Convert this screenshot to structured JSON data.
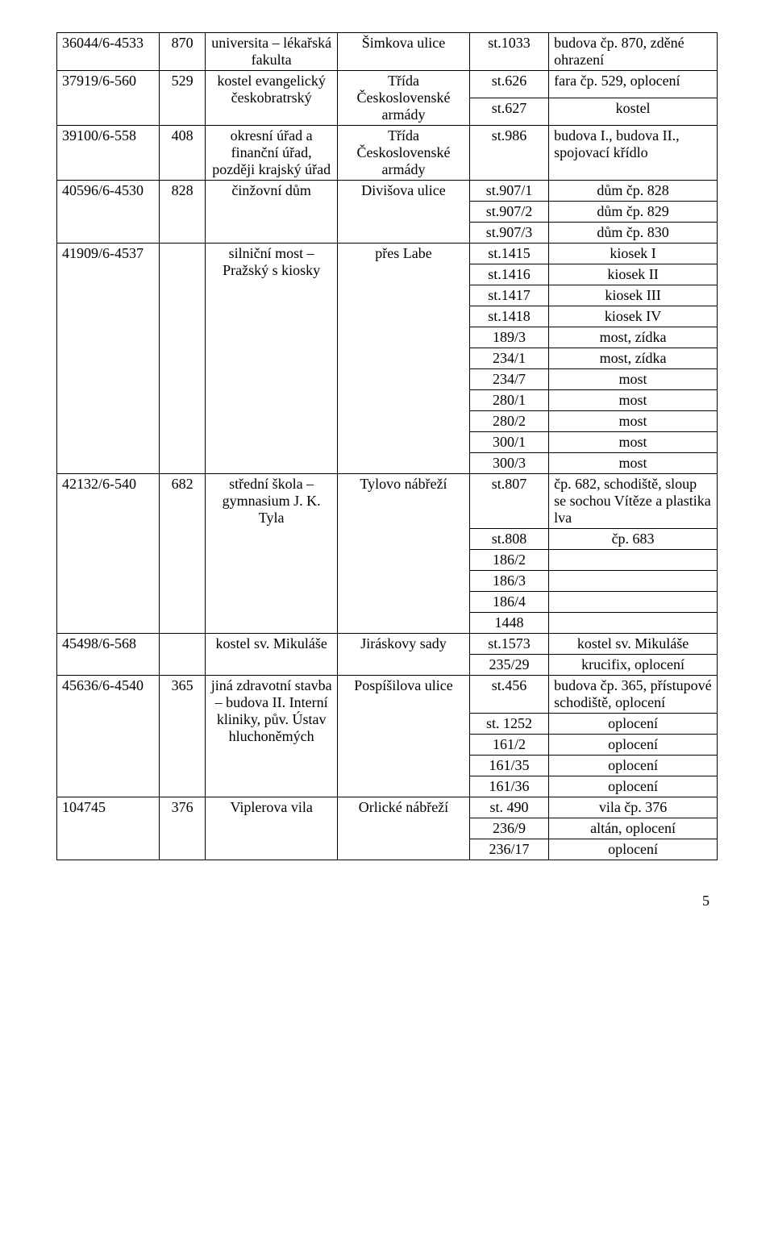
{
  "page_number": "5",
  "rows": [
    {
      "c1": "36044/6-4533",
      "c2": "870",
      "c3": "universita – lékařská fakulta",
      "c4": "Šimkova ulice",
      "c5": "st.1033",
      "c6": "budova čp. 870, zděné ohrazení",
      "rs": {
        "c1": 1,
        "c2": 1,
        "c3": 1,
        "c4": 1,
        "c5": 1,
        "c6": 1
      }
    },
    {
      "c1": "37919/6-560",
      "c2": "529",
      "c3": "kostel evangelický českobratrský",
      "c4": "Třída Československé armády",
      "c5": "st.626",
      "c6": "fara čp. 529, oplocení",
      "rs": {
        "c1": 2,
        "c2": 2,
        "c3": 2,
        "c4": 2,
        "c5": 1,
        "c6": 1
      }
    },
    {
      "c5": "st.627",
      "c6": "kostel"
    },
    {
      "c1": "39100/6-558",
      "c2": "408",
      "c3": "okresní úřad a finanční úřad, později krajský úřad",
      "c4": "Třída Československé armády",
      "c5": "st.986",
      "c6": "budova I., budova II., spojovací křídlo",
      "rs": {
        "c1": 1,
        "c2": 1,
        "c3": 1,
        "c4": 1,
        "c5": 1,
        "c6": 1
      }
    },
    {
      "c1": "40596/6-4530",
      "c2": "828",
      "c3": "činžovní dům",
      "c4": "Divišova ulice",
      "c5": "st.907/1",
      "c6": "dům čp. 828",
      "rs": {
        "c1": 3,
        "c2": 3,
        "c3": 3,
        "c4": 3,
        "c5": 1,
        "c6": 1
      }
    },
    {
      "c5": "st.907/2",
      "c6": "dům čp. 829"
    },
    {
      "c5": "st.907/3",
      "c6": "dům čp. 830"
    },
    {
      "c1": "41909/6-4537",
      "c2": "",
      "c3": "silniční most – Pražský s kiosky",
      "c4": "přes Labe",
      "c5": "st.1415",
      "c6": "kiosek I",
      "rs": {
        "c1": 11,
        "c2": 11,
        "c3": 11,
        "c4": 11,
        "c5": 1,
        "c6": 1
      }
    },
    {
      "c5": "st.1416",
      "c6": "kiosek II"
    },
    {
      "c5": "st.1417",
      "c6": "kiosek III"
    },
    {
      "c5": "st.1418",
      "c6": "kiosek IV"
    },
    {
      "c5": "189/3",
      "c6": "most, zídka"
    },
    {
      "c5": "234/1",
      "c6": "most, zídka"
    },
    {
      "c5": "234/7",
      "c6": "most"
    },
    {
      "c5": "280/1",
      "c6": "most"
    },
    {
      "c5": "280/2",
      "c6": "most"
    },
    {
      "c5": "300/1",
      "c6": "most"
    },
    {
      "c5": "300/3",
      "c6": "most"
    },
    {
      "c1": "42132/6-540",
      "c2": "682",
      "c3": "střední škola – gymnasium J. K. Tyla",
      "c4": "Tylovo nábřeží",
      "c5": "st.807",
      "c6": "čp. 682, schodiště, sloup se sochou Vítěze a plastika lva",
      "rs": {
        "c1": 6,
        "c2": 6,
        "c3": 6,
        "c4": 6,
        "c5": 1,
        "c6": 1
      }
    },
    {
      "c5": "st.808",
      "c6": "čp. 683"
    },
    {
      "c5": "186/2",
      "c6": ""
    },
    {
      "c5": "186/3",
      "c6": ""
    },
    {
      "c5": "186/4",
      "c6": ""
    },
    {
      "c5": "1448",
      "c6": ""
    },
    {
      "c1": "45498/6-568",
      "c2": "",
      "c3": "kostel sv. Mikuláše",
      "c4": "Jiráskovy sady",
      "c5": "st.1573",
      "c6": "kostel sv. Mikuláše",
      "rs": {
        "c1": 2,
        "c2": 2,
        "c3": 2,
        "c4": 2,
        "c5": 1,
        "c6": 1
      }
    },
    {
      "c5": "235/29",
      "c6": "krucifix, oplocení"
    },
    {
      "c1": "45636/6-4540",
      "c2": "365",
      "c3": "jiná zdravotní stavba – budova II. Interní kliniky, pův. Ústav hluchoněmých",
      "c4": "Pospíšilova ulice",
      "c5": "st.456",
      "c6": "budova čp. 365, přístupové schodiště, oplocení",
      "rs": {
        "c1": 5,
        "c2": 5,
        "c3": 5,
        "c4": 5,
        "c5": 1,
        "c6": 1
      }
    },
    {
      "c5": "st. 1252",
      "c6": "oplocení"
    },
    {
      "c5": "161/2",
      "c6": "oplocení"
    },
    {
      "c5": "161/35",
      "c6": "oplocení"
    },
    {
      "c5": "161/36",
      "c6": "oplocení"
    },
    {
      "c1": "104745",
      "c2": "376",
      "c3": "Viplerova vila",
      "c4": "Orlické nábřeží",
      "c5": "st. 490",
      "c6": "vila čp. 376",
      "rs": {
        "c1": 3,
        "c2": 3,
        "c3": 3,
        "c4": 3,
        "c5": 1,
        "c6": 1
      }
    },
    {
      "c5": "236/9",
      "c6": "altán, oplocení"
    },
    {
      "c5": "236/17",
      "c6": "oplocení"
    }
  ]
}
